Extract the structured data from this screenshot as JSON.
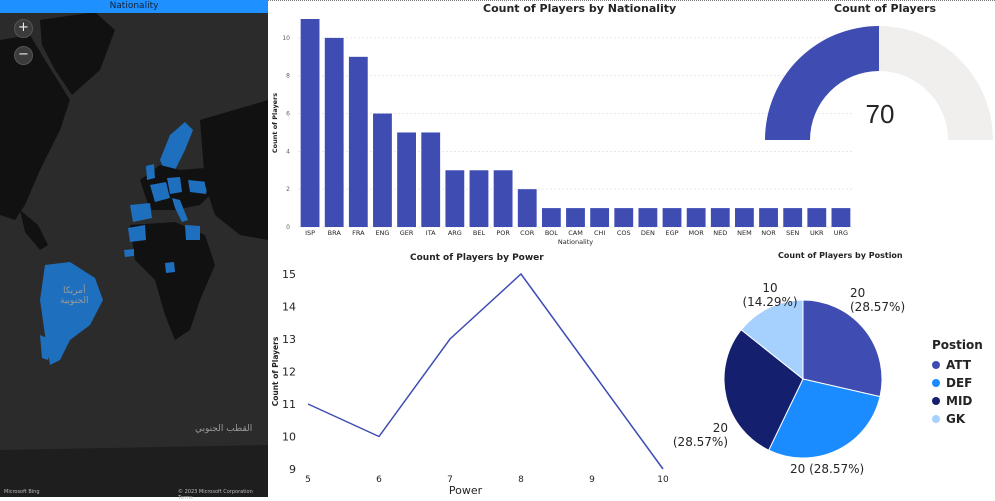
{
  "map": {
    "title": "Nationality",
    "zoom_in": "+",
    "zoom_out": "−",
    "label_south_america": "أمريكا\nالجنوبية",
    "label_antarctica": "القطب الجنوبي",
    "footer_left": "Microsoft Bing",
    "footer_right": "© 2023 Microsoft Corporation Terms",
    "colors": {
      "land": "#111111",
      "highlight": "#1f6fbf",
      "water": "#2b2b2b"
    }
  },
  "chart_data": [
    {
      "type": "bar",
      "title": "Count of Players by Nationality",
      "xlabel": "Nationality",
      "ylabel": "Count of Players",
      "categories": [
        "ISP",
        "BRA",
        "FRA",
        "ENG",
        "GER",
        "ITA",
        "ARG",
        "BEL",
        "POR",
        "COR",
        "BOL",
        "CAM",
        "CHI",
        "COS",
        "DEN",
        "EGP",
        "MOR",
        "NED",
        "NEM",
        "NOR",
        "SEN",
        "UKR",
        "URG"
      ],
      "values": [
        11,
        10,
        9,
        6,
        5,
        5,
        3,
        3,
        3,
        2,
        1,
        1,
        1,
        1,
        1,
        1,
        1,
        1,
        1,
        1,
        1,
        1,
        1
      ],
      "ylim": [
        0,
        11
      ],
      "yticks": [
        0,
        2,
        4,
        6,
        8,
        10
      ],
      "color": "#3f4db3",
      "grid": true
    },
    {
      "type": "gauge",
      "title": "Count of Players",
      "value": 70,
      "value_label": "70",
      "fill_fraction": 0.5,
      "fill_color": "#3f4db3",
      "track_color": "#f0efee"
    },
    {
      "type": "line",
      "title": "Count of Players by Power",
      "xlabel": "Power",
      "ylabel": "Count of Players",
      "x": [
        5,
        6,
        7,
        8,
        9,
        10
      ],
      "y": [
        11,
        10,
        13,
        15,
        12,
        9
      ],
      "xticks": [
        "5",
        "6",
        "7",
        "8",
        "9",
        "10"
      ],
      "yticks": [
        "9",
        "10",
        "11",
        "12",
        "13",
        "14",
        "15"
      ],
      "ylim": [
        9,
        15
      ],
      "color": "#3f4db3"
    },
    {
      "type": "pie",
      "title": "Count of Players by Postion",
      "legend_title": "Postion",
      "categories": [
        "ATT",
        "DEF",
        "MID",
        "GK"
      ],
      "values": [
        20,
        20,
        20,
        10
      ],
      "labels": [
        "20\n(28.57%)",
        "20 (28.57%)",
        "20\n(28.57%)",
        "10\n(14.29%)"
      ],
      "colors": [
        "#3f4db3",
        "#1a8cff",
        "#14206e",
        "#a6d1ff"
      ],
      "legend_position": "right"
    }
  ]
}
